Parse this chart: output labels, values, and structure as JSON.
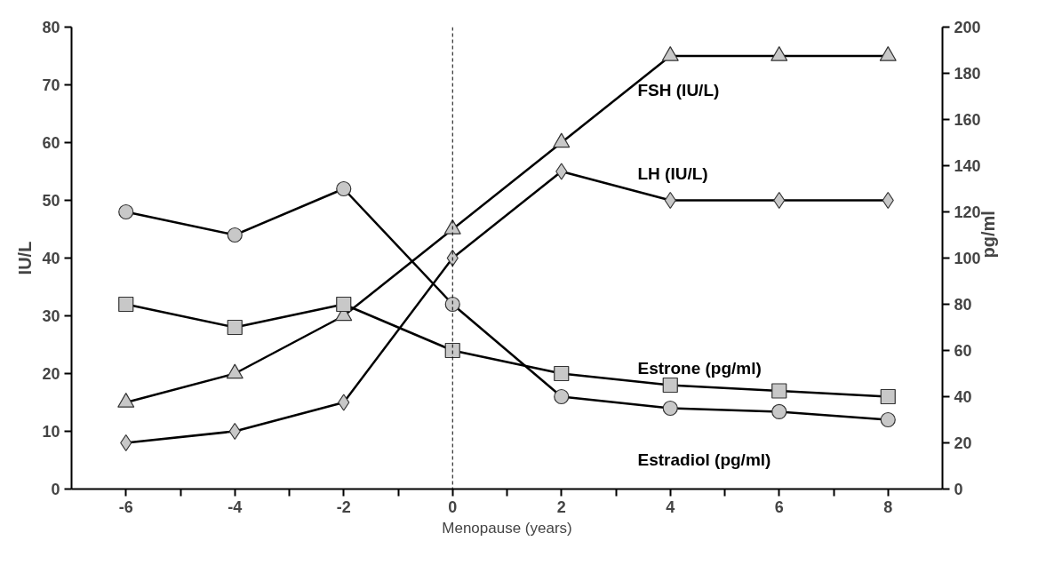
{
  "chart_data": {
    "type": "line",
    "xlabel": "Menopause (years)",
    "ylabel": "IU/L",
    "y2label": "pg/ml",
    "x": [
      -6,
      -4,
      -2,
      0,
      2,
      4,
      6,
      8
    ],
    "xlim": [
      -7,
      9
    ],
    "xticks": [
      -6,
      {
        "value": -5,
        "label": null
      },
      -4,
      {
        "value": -3,
        "label": null
      },
      -2,
      {
        "value": -1,
        "label": null
      },
      0,
      {
        "value": 1,
        "label": null
      },
      2,
      {
        "value": 3,
        "label": null
      },
      4,
      {
        "value": 5,
        "label": null
      },
      6,
      {
        "value": 7,
        "label": null
      },
      8
    ],
    "ylim": [
      0,
      80
    ],
    "yticks": [
      0,
      10,
      20,
      30,
      40,
      50,
      60,
      70,
      80
    ],
    "y2lim": [
      0,
      200
    ],
    "y2ticks": [
      0,
      20,
      40,
      60,
      80,
      100,
      120,
      140,
      160,
      180,
      200
    ],
    "grid": false,
    "series": [
      {
        "name": "FSH (IU/L)",
        "color": "#000000",
        "marker": "triangle",
        "values": [
          15,
          20,
          30,
          45,
          60,
          75,
          75,
          75
        ]
      },
      {
        "name": "LH (IU/L)",
        "color": "#000000",
        "marker": "diamond",
        "values": [
          8,
          10,
          15,
          40,
          55,
          50,
          50,
          50
        ]
      },
      {
        "name": "Estrone (pg/ml)",
        "color": "#000000",
        "marker": "square",
        "axis": "y2",
        "values": [
          80,
          70,
          80,
          60,
          50,
          45,
          42.5,
          40
        ]
      },
      {
        "name": "Estradiol (pg/ml)",
        "color": "#000000",
        "marker": "circle",
        "axis": "y2",
        "values": [
          120,
          110,
          130,
          80,
          40,
          35,
          33.5,
          30
        ]
      }
    ],
    "ref_lines": [
      {
        "axis": "x",
        "value": 0,
        "color": "#000000",
        "line_style": "dashed"
      }
    ]
  }
}
